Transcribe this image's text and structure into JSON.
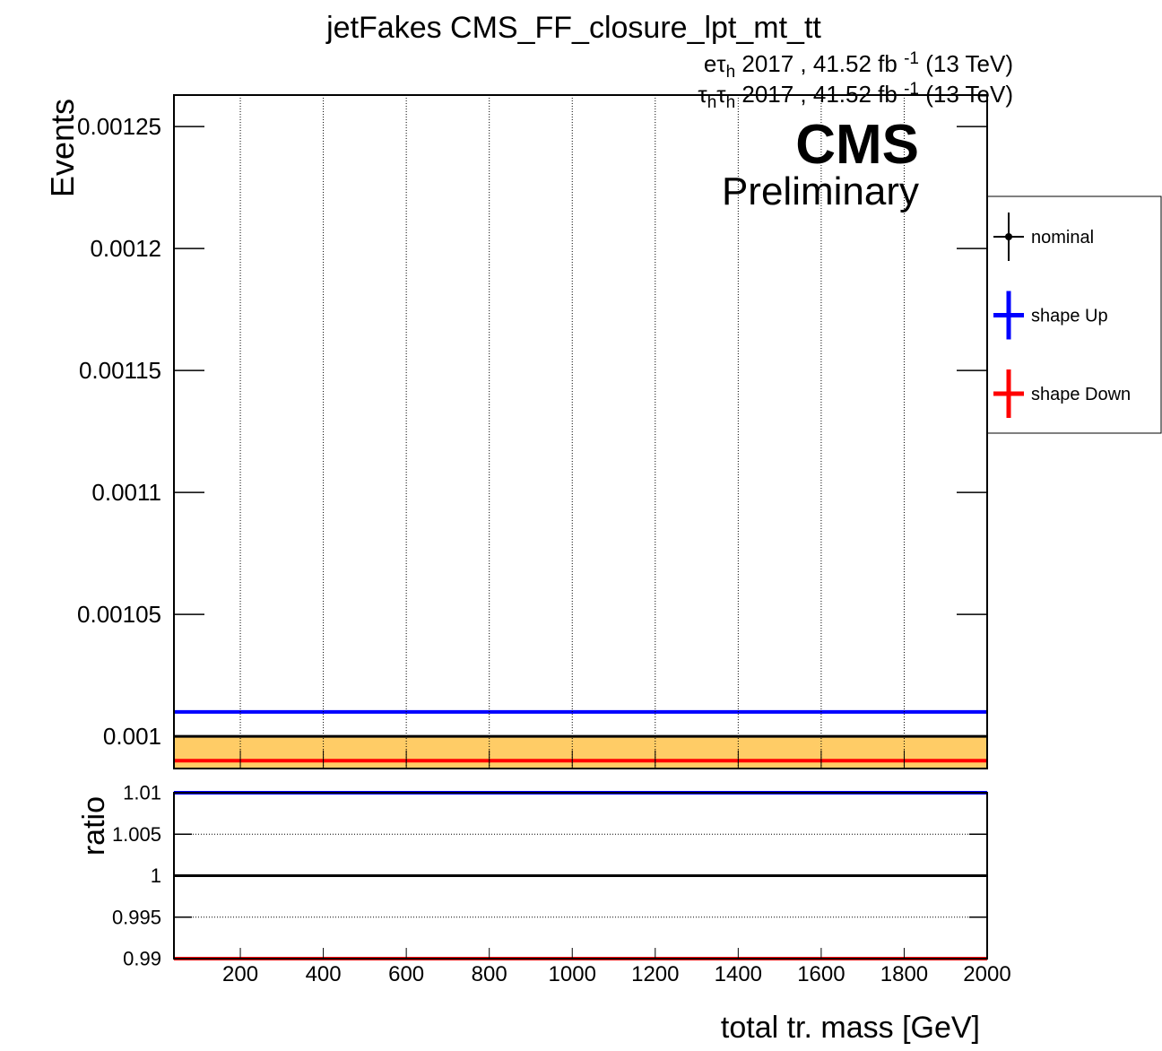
{
  "chart_data": [
    {
      "type": "histogram",
      "title": "jetFakes CMS_FF_closure_lpt_mt_tt",
      "lumi": [
        [
          {
            "t": "eτ"
          },
          {
            "sub": "h"
          },
          {
            "t": " 2017 , 41.52 fb "
          },
          {
            "sup": "-1"
          },
          {
            "t": " (13 TeV)"
          }
        ],
        [
          {
            "t": "τ"
          },
          {
            "sub": "h"
          },
          {
            "t": "τ"
          },
          {
            "sub": "h"
          },
          {
            "t": " 2017 , 41.52 fb "
          },
          {
            "sup": "-1"
          },
          {
            "t": " (13 TeV)"
          }
        ]
      ],
      "experiment": "CMS",
      "status": "Preliminary",
      "y_label": "Events",
      "bins": [
        40,
        2000
      ],
      "series": [
        {
          "name": "nominal",
          "color": "#000000",
          "fill": "#ffcc66",
          "values": [
            0.001
          ]
        },
        {
          "name": "shape Up",
          "color": "#0000ff",
          "values": [
            0.00101
          ]
        },
        {
          "name": "shape Down",
          "color": "#ff0000",
          "values": [
            0.00099
          ]
        }
      ],
      "xlim": [
        40,
        2000
      ],
      "xticks": [
        200,
        400,
        600,
        800,
        1000,
        1200,
        1400,
        1600,
        1800,
        2000
      ],
      "ylim": [
        0.0009868,
        0.0012629
      ],
      "yticks": [
        0.001,
        0.00105,
        0.0011,
        0.00115,
        0.0012,
        0.00125
      ],
      "grid": "x",
      "legend": "outside-right"
    },
    {
      "type": "histogram",
      "y_label": "ratio",
      "x_label": "total tr. mass [GeV]",
      "bins": [
        40,
        2000
      ],
      "series": [
        {
          "color": "#000000",
          "values": [
            1
          ]
        },
        {
          "color": "#0000ff",
          "values": [
            1.01
          ]
        },
        {
          "color": "#ff0000",
          "values": [
            0.99
          ]
        }
      ],
      "xlim": [
        40,
        2000
      ],
      "xticks": [
        200,
        400,
        600,
        800,
        1000,
        1200,
        1400,
        1600,
        1800,
        2000
      ],
      "ylim": [
        0.99,
        1.01
      ],
      "yticks": [
        0.99,
        0.995,
        1,
        1.005,
        1.01
      ],
      "grid": "y"
    }
  ]
}
